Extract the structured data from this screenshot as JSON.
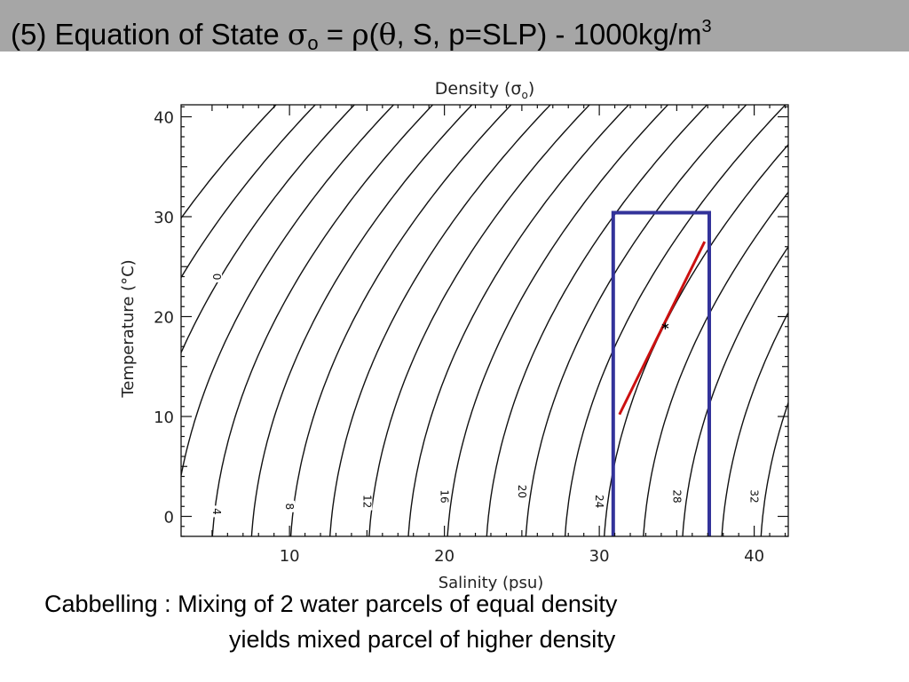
{
  "slide": {
    "title_prefix": "(5)  Equation of State ",
    "title_sigma": "σ",
    "title_sigma_sub": "o",
    "title_equals": " = ",
    "title_rho": "ρ",
    "title_open": "(",
    "title_theta": "θ",
    "title_rest": ", S, p=SLP) - 1000kg/m",
    "title_sup": "3",
    "caption_line1": "Cabbelling :  Mixing of 2 water parcels of equal density",
    "caption_line2": "yields mixed parcel of higher density"
  },
  "chart_data": {
    "type": "line",
    "title": "Density (σo)",
    "xlabel": "Salinity (psu)",
    "ylabel": "Temperature (°C)",
    "xlim": [
      3,
      42.2
    ],
    "ylim": [
      -2,
      41.2
    ],
    "xticks": [
      10,
      20,
      30,
      40
    ],
    "yticks": [
      0,
      10,
      20,
      30,
      40
    ],
    "contours": [
      {
        "label": "0",
        "label_at": [
          5.3,
          24.0
        ]
      },
      {
        "label": "4",
        "label_at": [
          5.3,
          0.5
        ]
      },
      {
        "label": "8",
        "label_at": [
          10.0,
          1.0
        ]
      },
      {
        "label": "12",
        "label_at": [
          15.0,
          1.5
        ]
      },
      {
        "label": "16",
        "label_at": [
          20.0,
          2.0
        ]
      },
      {
        "label": "20",
        "label_at": [
          25.0,
          2.5
        ]
      },
      {
        "label": "24",
        "label_at": [
          30.0,
          1.5
        ]
      },
      {
        "label": "28",
        "label_at": [
          35.0,
          2.0
        ]
      },
      {
        "label": "32",
        "label_at": [
          40.0,
          2.0
        ]
      }
    ],
    "box": {
      "s_min": 30.9,
      "s_max": 37.1,
      "t_min": -2,
      "t_max": 30.4,
      "color": "#33339a"
    },
    "mixing_line": {
      "start": [
        31.3,
        10.2
      ],
      "end": [
        36.8,
        27.5
      ],
      "color": "#cc1010"
    },
    "mixed_parcel": {
      "marker": "*",
      "s": 34.2,
      "t": 19.0
    }
  }
}
